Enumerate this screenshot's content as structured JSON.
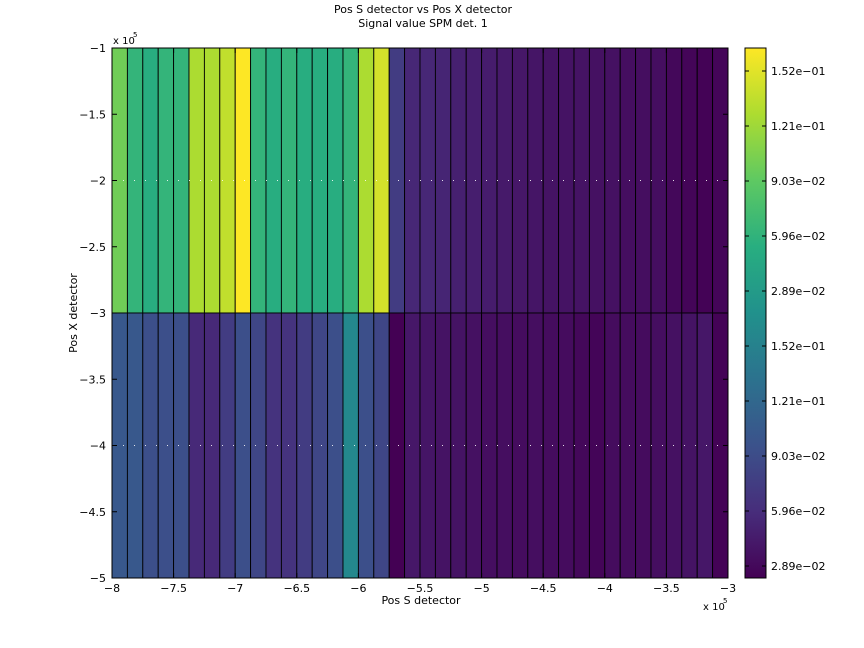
{
  "chart_data": {
    "type": "heatmap",
    "title": "Pos S detector vs Pos X detector",
    "subtitle": "Signal value SPM det. 1",
    "xlabel": "Pos S detector",
    "ylabel": "Pos X detector",
    "x_multiplier_label": "x 10",
    "x_multiplier_exp": "5",
    "y_multiplier_label": "x 10",
    "y_multiplier_exp": "5",
    "xlim": [
      -800000,
      -300000
    ],
    "ylim": [
      -500000,
      -100000
    ],
    "x_ticks": [
      {
        "value": -800000,
        "label": "−8"
      },
      {
        "value": -750000,
        "label": "−7.5"
      },
      {
        "value": -700000,
        "label": "−7"
      },
      {
        "value": -650000,
        "label": "−6.5"
      },
      {
        "value": -600000,
        "label": "−6"
      },
      {
        "value": -550000,
        "label": "−5.5"
      },
      {
        "value": -500000,
        "label": "−5"
      },
      {
        "value": -450000,
        "label": "−4.5"
      },
      {
        "value": -400000,
        "label": "−4"
      },
      {
        "value": -350000,
        "label": "−3.5"
      },
      {
        "value": -300000,
        "label": "−3"
      }
    ],
    "y_ticks": [
      {
        "value": -100000,
        "label": "−1"
      },
      {
        "value": -150000,
        "label": "−1.5"
      },
      {
        "value": -200000,
        "label": "−2"
      },
      {
        "value": -250000,
        "label": "−2.5"
      },
      {
        "value": -300000,
        "label": "−3"
      },
      {
        "value": -350000,
        "label": "−3.5"
      },
      {
        "value": -400000,
        "label": "−4"
      },
      {
        "value": -450000,
        "label": "−4.5"
      },
      {
        "value": -500000,
        "label": "−5"
      }
    ],
    "columns": 40,
    "x_start": -800000,
    "x_step": 12500,
    "rows": [
      {
        "y_from": -100000,
        "y_to": -300000,
        "values": [
          0.125,
          0.105,
          0.1,
          0.105,
          0.105,
          0.14,
          0.14,
          0.145,
          0.16,
          0.105,
          0.1,
          0.105,
          0.1,
          0.1,
          0.1,
          0.105,
          0.14,
          0.15,
          0.03,
          0.019,
          0.019,
          0.018,
          0.016,
          0.015,
          0.014,
          0.013,
          0.012,
          0.011,
          0.01,
          0.01,
          0.01,
          0.009,
          0.009,
          0.008,
          0.008,
          0.008,
          0.005,
          0.004,
          0.003,
          0.004
        ]
      },
      {
        "y_from": -300000,
        "y_to": -500000,
        "values": [
          0.045,
          0.045,
          0.04,
          0.04,
          0.04,
          0.02,
          0.02,
          0.03,
          0.04,
          0.035,
          0.025,
          0.025,
          0.03,
          0.035,
          0.04,
          0.075,
          0.04,
          0.035,
          0.002,
          0.012,
          0.011,
          0.01,
          0.01,
          0.009,
          0.008,
          0.008,
          0.007,
          0.008,
          0.007,
          0.007,
          0.005,
          0.004,
          0.007,
          0.007,
          0.007,
          0.008,
          0.009,
          0.01,
          0.012,
          0.003
        ]
      }
    ],
    "colorbar": {
      "colormap": "viridis",
      "tick_labels": [
        "1.52e−01",
        "1.21e−01",
        "9.03e−02",
        "5.96e−02",
        "2.89e−02",
        "1.52e−01",
        "1.21e−01",
        "9.03e−02",
        "5.96e−02",
        "2.89e−02"
      ]
    },
    "grid": "dotted",
    "legend": "colorbar-right"
  }
}
